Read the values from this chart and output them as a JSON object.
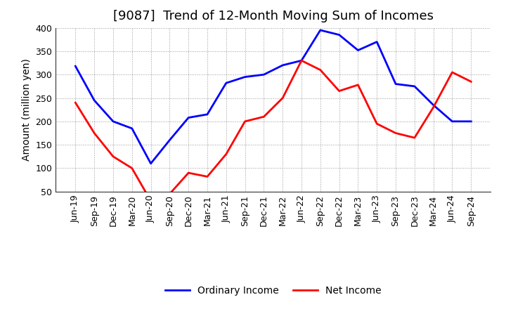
{
  "title": "[9087]  Trend of 12-Month Moving Sum of Incomes",
  "ylabel": "Amount (million yen)",
  "labels": [
    "Jun-19",
    "Sep-19",
    "Dec-19",
    "Mar-20",
    "Jun-20",
    "Sep-20",
    "Dec-20",
    "Mar-21",
    "Jun-21",
    "Sep-21",
    "Dec-21",
    "Mar-22",
    "Jun-22",
    "Sep-22",
    "Dec-22",
    "Mar-23",
    "Jun-23",
    "Sep-23",
    "Dec-23",
    "Mar-24",
    "Jun-24",
    "Sep-24"
  ],
  "ordinary_income": [
    318,
    245,
    200,
    185,
    110,
    160,
    208,
    215,
    282,
    295,
    300,
    320,
    330,
    395,
    385,
    352,
    370,
    280,
    275,
    235,
    200,
    200
  ],
  "net_income": [
    240,
    175,
    125,
    100,
    30,
    45,
    90,
    82,
    130,
    200,
    210,
    250,
    330,
    310,
    265,
    278,
    195,
    175,
    165,
    230,
    305,
    285
  ],
  "ordinary_color": "#0000FF",
  "net_color": "#FF0000",
  "ylim_min": 50,
  "ylim_max": 400,
  "yticks": [
    50,
    100,
    150,
    200,
    250,
    300,
    350,
    400
  ],
  "bg_color": "#FFFFFF",
  "plot_bg_color": "#FFFFFF",
  "grid_color": "#999999",
  "title_fontsize": 13,
  "axis_label_fontsize": 10,
  "tick_fontsize": 9,
  "legend_fontsize": 10,
  "line_width": 2.0
}
